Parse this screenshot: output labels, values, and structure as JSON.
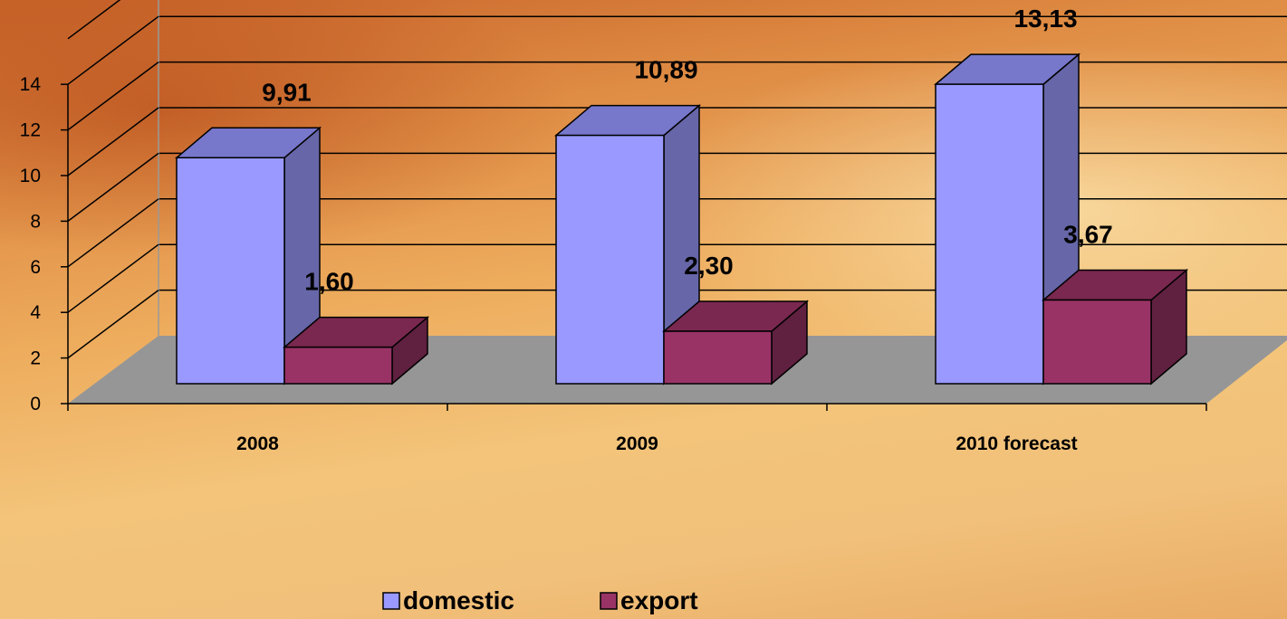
{
  "chart_data": {
    "type": "bar",
    "categories": [
      "2008",
      "2009",
      "2010 forecast"
    ],
    "series": [
      {
        "name": "domestic",
        "values": [
          9.91,
          10.89,
          13.13
        ],
        "labels": [
          "9,91",
          "10,89",
          "13,13"
        ],
        "color": "#9999FF"
      },
      {
        "name": "export",
        "values": [
          1.6,
          2.3,
          3.67
        ],
        "labels": [
          "1,60",
          "2,30",
          "3,67"
        ],
        "color": "#993366"
      }
    ],
    "y_ticks": [
      "0",
      "2",
      "4",
      "6",
      "8",
      "10",
      "12",
      "14"
    ],
    "ylim": [
      0,
      14
    ],
    "grid": true,
    "three_d": true,
    "legend_position": "bottom",
    "floor_color": "#969696"
  }
}
